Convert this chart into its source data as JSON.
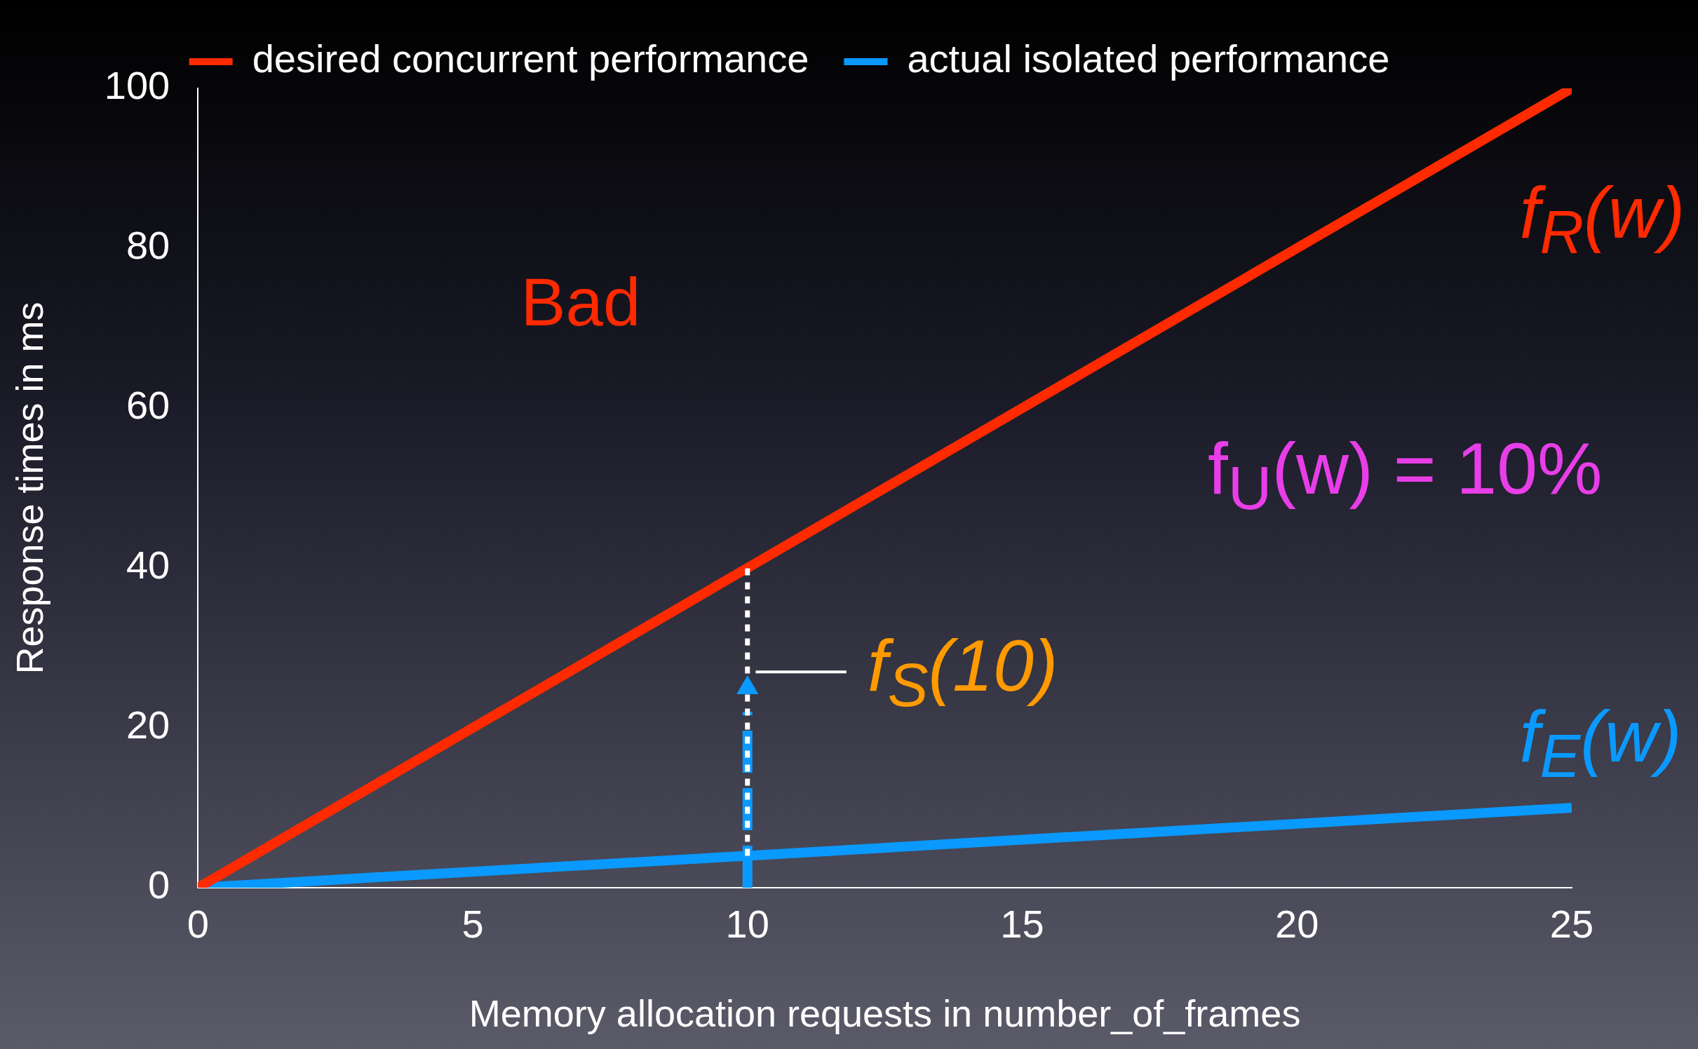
{
  "chart_data": {
    "type": "line",
    "xlabel": "Memory allocation requests in number_of_frames",
    "ylabel": "Response times in ms",
    "x": [
      0,
      10,
      25
    ],
    "series": [
      {
        "name": "desired concurrent performance",
        "color": "#ff2a00",
        "values": [
          0,
          40,
          100
        ]
      },
      {
        "name": "actual isolated performance",
        "color": "#0a9aff",
        "values": [
          0,
          4,
          10
        ]
      },
      {
        "color": "#ffffff",
        "x": [
          10,
          10
        ],
        "values": [
          4,
          40
        ],
        "line_style": "dotted"
      },
      {
        "color": "#0a9aff",
        "x": [
          10,
          10
        ],
        "values": [
          0,
          22
        ],
        "line_style": "dashed"
      },
      {
        "type": "scatter",
        "color": "#0a9aff",
        "x": [
          10
        ],
        "values": [
          25
        ],
        "marker": "triangle"
      },
      {
        "color": "#ffffff",
        "x": [
          10.15,
          11.8
        ],
        "values": [
          27,
          27
        ]
      }
    ],
    "xlim": [
      0,
      25
    ],
    "xticks": [
      0,
      5,
      10,
      15,
      20,
      25
    ],
    "ylim": [
      0,
      100
    ],
    "yticks": [
      0,
      20,
      40,
      60,
      80,
      100
    ],
    "grid": false,
    "legend": "top",
    "marker": "none",
    "line_style": "solid",
    "annotations": [
      "Bad",
      "f$_{R}$(w)",
      "f$_{U}$(w) = 10%",
      {
        "text": "f$_{S}$(10)",
        "x": 11.8,
        "y": 27
      },
      "f$_{E}$(w)"
    ]
  }
}
